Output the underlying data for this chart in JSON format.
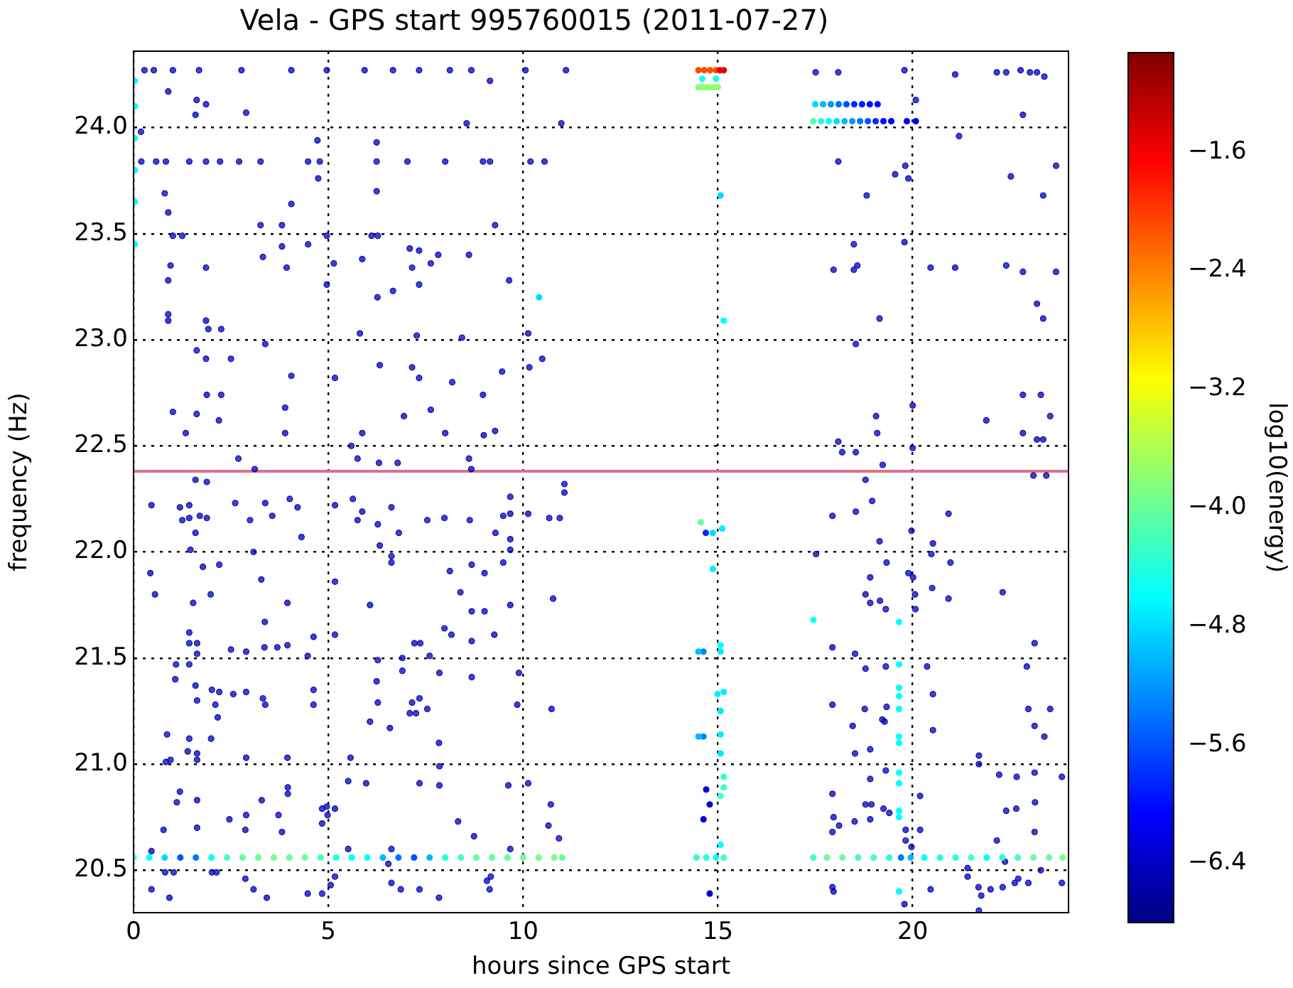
{
  "chart_data": {
    "type": "scatter",
    "title": "Vela - GPS start 995760015 (2011-07-27)",
    "xlabel": "hours since GPS start",
    "ylabel": "frequency (Hz)",
    "clabel": "log10(energy)",
    "xlim": [
      0,
      24
    ],
    "ylim": [
      20.3,
      24.36
    ],
    "xticks": [
      0,
      5,
      10,
      15,
      20
    ],
    "yticks": [
      {
        "value": 20.5,
        "label": "20.5"
      },
      {
        "value": 21,
        "label": "21.0"
      },
      {
        "value": 21.5,
        "label": "21.5"
      },
      {
        "value": 22,
        "label": "22.0"
      },
      {
        "value": 22.5,
        "label": "22.5"
      },
      {
        "value": 23,
        "label": "23.0"
      },
      {
        "value": 23.5,
        "label": "23.5"
      },
      {
        "value": 24,
        "label": "24.0"
      }
    ],
    "clim": [
      -6.8,
      -0.93
    ],
    "cticks": [
      {
        "value": -1.6,
        "label": "−1.6"
      },
      {
        "value": -2.4,
        "label": "−2.4"
      },
      {
        "value": -3.2,
        "label": "−3.2"
      },
      {
        "value": -4,
        "label": "−4.0"
      },
      {
        "value": -4.8,
        "label": "−4.8"
      },
      {
        "value": -5.6,
        "label": "−5.6"
      },
      {
        "value": -6.4,
        "label": "−6.4"
      }
    ],
    "grid": true,
    "marker": "circle",
    "ref_lines": [
      {
        "axis": "y",
        "value": 22.38,
        "color": "#e0708a"
      }
    ],
    "series": [
      {
        "x": [
          0.28,
          0.52,
          1.01,
          1.68,
          2.77,
          4.05,
          4.96,
          5.93,
          6.66,
          7.33,
          8.12,
          8.67,
          10.06,
          11.1,
          0.89,
          1.62,
          1.86,
          1.59,
          2.89,
          8.55,
          10.98,
          9.15,
          0.19
        ],
        "values": [
          24.27,
          24.27,
          24.27,
          24.27,
          24.27,
          24.27,
          24.27,
          24.27,
          24.27,
          24.27,
          24.27,
          24.27,
          24.27,
          24.27,
          24.17,
          24.13,
          24.11,
          24.06,
          24.07,
          24.02,
          24.02,
          24.22,
          23.98
        ],
        "cvalues": [
          -6.5,
          -6.5,
          -6.5,
          -6.5,
          -6.5,
          -6.5,
          -6.5,
          -6.5,
          -6.5,
          -6.5,
          -6.5,
          -6.5,
          -6.5,
          -6.5,
          -6.5,
          -6.5,
          -6.5,
          -6.5,
          -6.5,
          -6.5,
          -6.5,
          -6.5,
          -6.5
        ]
      },
      {
        "x": [
          0.2,
          0.58,
          0.83,
          1.43,
          1.86,
          2.22,
          2.71,
          3.26,
          4.48,
          4.78,
          6.24,
          7.03,
          8.0,
          8.97,
          9.15,
          10.19,
          10.55,
          4.72,
          6.24,
          4.05,
          0.8,
          0.89,
          6.24,
          4.74,
          3.26,
          3.81,
          9.28,
          1.01,
          1.25,
          4.96,
          6.11,
          6.27
        ],
        "values": [
          23.84,
          23.84,
          23.84,
          23.84,
          23.84,
          23.84,
          23.84,
          23.84,
          23.84,
          23.84,
          23.84,
          23.84,
          23.84,
          23.84,
          23.84,
          23.84,
          23.84,
          23.94,
          23.93,
          23.64,
          23.69,
          23.6,
          23.7,
          23.76,
          23.54,
          23.54,
          23.54,
          23.49,
          23.49,
          23.49,
          23.49,
          23.49
        ],
        "cvalues": [
          -6.5,
          -6.5,
          -6.5,
          -6.5,
          -6.5,
          -6.5,
          -6.5,
          -6.5,
          -6.5,
          -6.5,
          -6.5,
          -6.5,
          -6.5,
          -6.5,
          -6.5,
          -6.5,
          -6.5,
          -6.5,
          -6.5,
          -6.5,
          -6.5,
          -6.5,
          -6.5,
          -6.5,
          -6.5,
          -6.5,
          -6.5,
          -6.5,
          -6.5,
          -6.5,
          -6.5,
          -6.5
        ]
      },
      {
        "x": [
          3.32,
          3.81,
          4.48,
          0.95,
          1.86,
          3.93,
          5.14,
          5.87,
          7.09,
          7.33,
          7.82,
          8.61,
          7.63,
          7.15,
          0.89,
          9.64,
          4.96,
          7.33,
          6.66,
          6.26
        ],
        "values": [
          23.39,
          23.44,
          23.45,
          23.35,
          23.34,
          23.34,
          23.36,
          23.38,
          23.43,
          23.42,
          23.4,
          23.4,
          23.36,
          23.34,
          23.28,
          23.28,
          23.26,
          23.26,
          23.23,
          23.2
        ],
        "cvalues": [
          -6.5,
          -6.5,
          -6.5,
          -6.5,
          -6.5,
          -6.5,
          -6.5,
          -6.5,
          -6.5,
          -6.5,
          -6.5,
          -6.5,
          -6.5,
          -6.5,
          -6.5,
          -6.5,
          -6.5,
          -6.5,
          -6.5,
          -6.5
        ]
      },
      {
        "x": [
          10.41,
          0.03,
          0.03,
          0.03,
          0.03,
          0.03,
          0.03
        ],
        "values": [
          23.2,
          24.22,
          24.1,
          23.95,
          23.8,
          23.65,
          23.45
        ],
        "cvalues": [
          -4.8,
          -4.6,
          -4.6,
          -4.6,
          -4.6,
          -4.6,
          -4.6
        ],
        "colors": [
          "#00dcff",
          "#00ffff",
          "#00ffff",
          "#00ffff",
          "#00ffff",
          "#00ffff",
          "#00ffff"
        ]
      },
      {
        "x": [
          0.89,
          0.89,
          1.86,
          1.92,
          2.25,
          5.81,
          7.27,
          8.43,
          10.13,
          3.38,
          1.62,
          1.86,
          2.5,
          4.05,
          5.17,
          6.32,
          7.15,
          7.33,
          8.18,
          9.46,
          10.16,
          10.49,
          8.97,
          1.88,
          2.25,
          1.01,
          1.62,
          2.19,
          3.89,
          6.94,
          7.63,
          1.34,
          3.89,
          5.87,
          8.0,
          8.99,
          9.28,
          5.59,
          2.69,
          5.75,
          8.61,
          6.3,
          6.78,
          3.11,
          8.67,
          1.59,
          1.88,
          11.06
        ],
        "values": [
          23.12,
          23.09,
          23.09,
          23.05,
          23.05,
          23.03,
          23.02,
          23.01,
          23.03,
          22.98,
          22.95,
          22.91,
          22.91,
          22.83,
          22.82,
          22.88,
          22.87,
          22.82,
          22.8,
          22.85,
          22.87,
          22.91,
          22.74,
          22.74,
          22.74,
          22.66,
          22.65,
          22.62,
          22.68,
          22.64,
          22.67,
          22.56,
          22.56,
          22.56,
          22.56,
          22.55,
          22.57,
          22.5,
          22.44,
          22.44,
          22.44,
          22.42,
          22.42,
          22.39,
          22.39,
          22.34,
          22.33,
          22.32
        ],
        "cvalues": [
          -6.5,
          -6.5,
          -6.5,
          -6.5,
          -6.5,
          -6.5,
          -6.5,
          -6.5,
          -6.5,
          -6.5,
          -6.5,
          -6.5,
          -6.5,
          -6.5,
          -6.5,
          -6.5,
          -6.5,
          -6.5,
          -6.5,
          -6.5,
          -6.5,
          -6.5,
          -6.5,
          -6.5,
          -6.5,
          -6.5,
          -6.5,
          -6.5,
          -6.5,
          -6.5,
          -6.5,
          -6.5,
          -6.5,
          -6.5,
          -6.5,
          -6.5,
          -6.5,
          -6.5,
          -6.5,
          -6.5,
          -6.5,
          -6.5,
          -6.5,
          -6.5,
          -6.5,
          -6.5,
          -6.5,
          -6.5
        ]
      },
      {
        "x": [
          14.5,
          14.65,
          14.8,
          14.95,
          15.05,
          15.15,
          14.5,
          14.6,
          14.7,
          14.8,
          14.9,
          15.0,
          14.6,
          14.95
        ],
        "values": [
          24.27,
          24.27,
          24.27,
          24.27,
          24.27,
          24.27,
          24.19,
          24.19,
          24.19,
          24.19,
          24.19,
          24.19,
          24.23,
          24.23
        ],
        "cvalues": [
          -2.1,
          -2.1,
          -2.1,
          -2.1,
          -1.5,
          -1.5,
          -3.8,
          -3.8,
          -3.8,
          -3.8,
          -3.8,
          -3.8,
          -4.5,
          -4.5
        ],
        "colors": [
          "#ff4c00",
          "#ff4c00",
          "#ff4c00",
          "#ff4c00",
          "#e20000",
          "#e20000",
          "#8bff74",
          "#8bff74",
          "#8bff74",
          "#8bff74",
          "#8bff74",
          "#8bff74",
          "#11ffee",
          "#11ffee"
        ]
      },
      {
        "x": [
          17.5,
          17.7,
          17.9,
          18.1,
          18.3,
          18.5,
          18.7,
          18.9,
          19.1,
          17.45,
          17.65,
          17.85,
          18.05,
          18.25,
          18.45,
          18.65,
          18.85,
          19.05,
          19.25,
          19.45,
          19.85,
          20.08
        ],
        "values": [
          24.11,
          24.11,
          24.11,
          24.11,
          24.11,
          24.11,
          24.11,
          24.11,
          24.11,
          24.03,
          24.03,
          24.03,
          24.03,
          24.03,
          24.03,
          24.03,
          24.03,
          24.03,
          24.03,
          24.03,
          24.03,
          24.03
        ],
        "cvalues": [
          -4.8,
          -5.0,
          -5.2,
          -5.4,
          -5.6,
          -5.8,
          -5.9,
          -6.0,
          -6.0,
          -4.1,
          -4.4,
          -4.6,
          -4.8,
          -5.0,
          -5.2,
          -5.4,
          -5.6,
          -5.8,
          -6.0,
          -6.1,
          -6.2,
          -6.2
        ],
        "colors": [
          "#00dcff",
          "#00b9ff",
          "#0097ff",
          "#0074ff",
          "#0051ff",
          "#002eff",
          "#001dff",
          "#000cff",
          "#000cff",
          "#57ffa8",
          "#22ffdd",
          "#00ffff",
          "#00dcff",
          "#00b9ff",
          "#0097ff",
          "#0074ff",
          "#0051ff",
          "#002eff",
          "#000cff",
          "#0000f9",
          "#0000e8",
          "#0000e8"
        ]
      },
      {
        "x": [
          17.51,
          18.09,
          19.79,
          21.09,
          22.16,
          22.4,
          22.77,
          23.01,
          23.19,
          23.38,
          20.08,
          22.83,
          21.19,
          18.09,
          19.81,
          19.55,
          19.89,
          22.52,
          23.68,
          18.82,
          23.35,
          19.79,
          18.49,
          17.97,
          18.49,
          18.58,
          20.46,
          21.09,
          22.4,
          22.83,
          23.68,
          23.19,
          23.35,
          19.15,
          18.54,
          19.06,
          19.09,
          20.0,
          21.89,
          22.83,
          23.29,
          23.53,
          22.83,
          23.19,
          23.35,
          18.09,
          18.19,
          18.54,
          20.0,
          19.23,
          18.79,
          23.1,
          23.43
        ],
        "values": [
          24.26,
          24.26,
          24.27,
          24.25,
          24.26,
          24.26,
          24.27,
          24.26,
          24.26,
          24.24,
          24.13,
          24.06,
          23.96,
          23.84,
          23.82,
          23.78,
          23.76,
          23.77,
          23.82,
          23.68,
          23.68,
          23.46,
          23.45,
          23.33,
          23.33,
          23.35,
          23.34,
          23.34,
          23.35,
          23.32,
          23.32,
          23.17,
          23.1,
          23.1,
          22.98,
          22.64,
          22.56,
          22.69,
          22.62,
          22.74,
          22.74,
          22.64,
          22.56,
          22.53,
          22.53,
          22.52,
          22.47,
          22.47,
          22.49,
          22.41,
          22.34,
          22.36,
          22.36
        ],
        "cvalues": [
          -6.5,
          -6.5,
          -6.5,
          -6.5,
          -6.5,
          -6.5,
          -6.5,
          -6.5,
          -6.5,
          -6.5,
          -6.5,
          -6.5,
          -6.5,
          -6.5,
          -6.5,
          -6.5,
          -6.5,
          -6.5,
          -6.5,
          -6.5,
          -6.5,
          -6.5,
          -6.5,
          -6.5,
          -6.5,
          -6.5,
          -6.5,
          -6.5,
          -6.5,
          -6.5,
          -6.5,
          -6.5,
          -6.5,
          -6.5,
          -6.5,
          -6.5,
          -6.5,
          -6.5,
          -6.5,
          -6.5,
          -6.5,
          -6.5,
          -6.5,
          -6.5,
          -6.5,
          -6.5,
          -6.5,
          -6.5,
          -6.5,
          -6.5,
          -6.5,
          -6.5,
          -6.5
        ]
      },
      {
        "x": [
          15.07,
          15.15
        ],
        "values": [
          23.68,
          23.09
        ],
        "cvalues": [
          -4.8,
          -4.6
        ],
        "colors": [
          "#00dcff",
          "#00ffff"
        ]
      },
      {
        "x": [
          0.46,
          1.19,
          1.43,
          1.25,
          1.43,
          1.7,
          1.88,
          1.59,
          1.46,
          2.61,
          2.99,
          3.38,
          3.56,
          4.01,
          4.21,
          4.31,
          3.08,
          0.43,
          0.55,
          1.78,
          2.2,
          1.53,
          1.98,
          3.28,
          3.37,
          3.95,
          1.43,
          1.43,
          1.63,
          1.63,
          2.5,
          2.89,
          3.36,
          3.69,
          3.95,
          4.62,
          4.47,
          1.09,
          1.43,
          1.07,
          1.59,
          2.01,
          2.2,
          2.56,
          2.89,
          3.32,
          3.38,
          4.62,
          4.62,
          1.63
        ],
        "values": [
          22.22,
          22.21,
          22.22,
          22.15,
          22.16,
          22.17,
          22.16,
          22.09,
          22.01,
          22.23,
          22.15,
          22.23,
          22.17,
          22.25,
          22.21,
          22.07,
          22.0,
          21.9,
          21.8,
          21.93,
          21.94,
          21.76,
          21.8,
          21.87,
          21.67,
          21.76,
          21.62,
          21.57,
          21.57,
          21.52,
          21.54,
          21.53,
          21.55,
          21.55,
          21.56,
          21.6,
          21.51,
          21.47,
          21.47,
          21.4,
          21.37,
          21.35,
          21.34,
          21.33,
          21.34,
          21.31,
          21.28,
          21.35,
          21.28,
          21.3
        ],
        "cvalues": [
          -6.5,
          -6.5,
          -6.5,
          -6.5,
          -6.5,
          -6.5,
          -6.5,
          -6.5,
          -6.5,
          -6.5,
          -6.5,
          -6.5,
          -6.5,
          -6.5,
          -6.5,
          -6.5,
          -6.5,
          -6.5,
          -6.5,
          -6.5,
          -6.5,
          -6.5,
          -6.5,
          -6.5,
          -6.5,
          -6.5,
          -6.5,
          -6.5,
          -6.5,
          -6.5,
          -6.5,
          -6.5,
          -6.5,
          -6.5,
          -6.5,
          -6.5,
          -6.5,
          -6.5,
          -6.5,
          -6.5,
          -6.5,
          -6.5,
          -6.5,
          -6.5,
          -6.5,
          -6.5,
          -6.5,
          -6.5,
          -6.5,
          -6.5
        ]
      },
      {
        "x": [
          2.1,
          2.16,
          0.86,
          1.43,
          1.99,
          1.39,
          1.63,
          1.63,
          0.95,
          0.83,
          2.89,
          3.95,
          1.19,
          1.11,
          1.63,
          3.29,
          3.96,
          3.96,
          2.46,
          2.89,
          3.72,
          1.63,
          2.87,
          3.81,
          0.77,
          4.84,
          4.96,
          5.17,
          4.84,
          4.98,
          0.46,
          0.81,
          1.03,
          2.01,
          2.13,
          2.87,
          0.46,
          0.92,
          3.08,
          3.42,
          4.47,
          4.84,
          5.06,
          5.17
        ],
        "values": [
          21.28,
          21.22,
          21.14,
          21.12,
          21.12,
          21.06,
          21.05,
          21.02,
          21.02,
          21.01,
          21.03,
          21.03,
          20.87,
          20.82,
          20.83,
          20.83,
          20.89,
          20.86,
          20.74,
          20.76,
          20.76,
          20.7,
          20.69,
          20.68,
          20.69,
          20.79,
          20.8,
          20.79,
          20.72,
          20.76,
          20.59,
          20.49,
          20.49,
          20.49,
          20.49,
          20.46,
          20.41,
          20.37,
          20.41,
          20.37,
          20.39,
          20.39,
          20.43,
          20.47
        ],
        "cvalues": [
          -6.5,
          -6.5,
          -6.5,
          -6.5,
          -6.5,
          -6.5,
          -6.5,
          -6.5,
          -6.5,
          -6.5,
          -6.5,
          -6.5,
          -6.5,
          -6.5,
          -6.5,
          -6.5,
          -6.5,
          -6.5,
          -6.5,
          -6.5,
          -6.5,
          -6.5,
          -6.5,
          -6.5,
          -6.5,
          -6.5,
          -6.5,
          -6.5,
          -6.5,
          -6.5,
          -6.5,
          -6.5,
          -6.5,
          -6.5,
          -6.5,
          -6.5,
          -6.5,
          -6.5,
          -6.5,
          -6.5,
          -6.5,
          -6.5,
          -6.5,
          -6.5
        ]
      },
      {
        "x": [
          5.17,
          5.63,
          5.75,
          5.87,
          6.27,
          6.62,
          6.81,
          6.32,
          6.62,
          6.62,
          7.54,
          7.98,
          8.63,
          9.29,
          9.49,
          9.67,
          9.67,
          9.67,
          9.49,
          9.67,
          5.17,
          6.07,
          8.12,
          8.39,
          8.68,
          9.01,
          9.01,
          8.68,
          9.67,
          7.98,
          8.16,
          8.68,
          9.26,
          7.21,
          7.36,
          5.17,
          6.27,
          6.9,
          7.6,
          6.9,
          6.24,
          6.27,
          7.85,
          8.68,
          7.15,
          7.34,
          7.54,
          7.09,
          7.25,
          6.07
        ],
        "values": [
          22.22,
          22.25,
          22.15,
          22.19,
          22.13,
          22.21,
          22.09,
          22.03,
          21.98,
          21.95,
          22.15,
          22.16,
          22.15,
          22.09,
          22.17,
          22.18,
          22.06,
          22.01,
          21.95,
          22.26,
          21.86,
          21.75,
          21.91,
          21.81,
          21.94,
          21.9,
          21.72,
          21.72,
          21.75,
          21.64,
          21.61,
          21.58,
          21.61,
          21.57,
          21.57,
          21.61,
          21.49,
          21.5,
          21.51,
          21.44,
          21.39,
          21.29,
          21.43,
          21.41,
          21.29,
          21.31,
          21.26,
          21.24,
          21.24,
          21.2
        ],
        "cvalues": [
          -6.5,
          -6.5,
          -6.5,
          -6.5,
          -6.5,
          -6.5,
          -6.5,
          -6.5,
          -6.5,
          -6.5,
          -6.5,
          -6.5,
          -6.5,
          -6.5,
          -6.5,
          -6.5,
          -6.5,
          -6.5,
          -6.5,
          -6.5,
          -6.5,
          -6.5,
          -6.5,
          -6.5,
          -6.5,
          -6.5,
          -6.5,
          -6.5,
          -6.5,
          -6.5,
          -6.5,
          -6.5,
          -6.5,
          -6.5,
          -6.5,
          -6.5,
          -6.5,
          -6.5,
          -6.5,
          -6.5,
          -6.5,
          -6.5,
          -6.5,
          -6.5,
          -6.5,
          -6.5,
          -6.5,
          -6.5,
          -6.5,
          -6.5
        ]
      },
      {
        "x": [
          6.58,
          7.84,
          5.57,
          7.85,
          7.85,
          7.34,
          5.51,
          5.97,
          8.33,
          8.74,
          9.62,
          9.85,
          9.89,
          10.13,
          10.71,
          10.65,
          10.92,
          10.73,
          10.77,
          10.67,
          10.94,
          11.06,
          10.13,
          9.67,
          5.51,
          6.62,
          6.54,
          6.62,
          6.86,
          7.34,
          7.84,
          9.07,
          9.17,
          9.14
        ],
        "values": [
          21.17,
          21.1,
          21.03,
          20.99,
          20.9,
          20.91,
          20.92,
          20.91,
          20.73,
          20.66,
          20.9,
          21.28,
          21.43,
          20.91,
          20.81,
          20.71,
          20.65,
          21.26,
          21.78,
          22.16,
          22.16,
          22.28,
          22.18,
          20.6,
          20.6,
          20.6,
          20.53,
          20.44,
          20.41,
          20.41,
          20.37,
          20.45,
          20.47,
          20.41
        ],
        "cvalues": [
          -6.5,
          -6.5,
          -6.5,
          -6.5,
          -6.5,
          -6.5,
          -6.5,
          -6.5,
          -6.5,
          -6.5,
          -6.5,
          -6.5,
          -6.5,
          -6.5,
          -6.5,
          -6.5,
          -6.5,
          -6.5,
          -6.5,
          -6.5,
          -6.5,
          -6.5,
          -6.5,
          -6.5,
          -6.5,
          -6.5,
          -6.5,
          -6.5,
          -6.5,
          -6.5,
          -6.5,
          -6.5,
          -6.5,
          -6.5
        ]
      },
      {
        "x": [
          0.0,
          0.4,
          0.8,
          1.2,
          1.6,
          2.0,
          2.4,
          2.8,
          3.2,
          3.6,
          4.0,
          4.4,
          4.8,
          5.2,
          5.6,
          6.0,
          6.4,
          6.8,
          7.2,
          7.6,
          8.0,
          8.4,
          8.8,
          9.2,
          9.6,
          10.0,
          10.4,
          10.8,
          11.0
        ],
        "values": [
          20.56,
          20.56,
          20.56,
          20.56,
          20.56,
          20.56,
          20.56,
          20.56,
          20.56,
          20.56,
          20.56,
          20.56,
          20.56,
          20.56,
          20.56,
          20.56,
          20.56,
          20.56,
          20.56,
          20.56,
          20.56,
          20.56,
          20.56,
          20.56,
          20.56,
          20.56,
          20.56,
          20.56,
          20.56
        ],
        "cvalues": [
          -4.2,
          -4.6,
          -4.8,
          -5.6,
          -5.4,
          -4.6,
          -4.2,
          -4.0,
          -4.0,
          -3.9,
          -4.0,
          -4.0,
          -4.2,
          -4.4,
          -4.6,
          -4.6,
          -5.0,
          -5.4,
          -5.6,
          -5.0,
          -4.4,
          -4.2,
          -4.0,
          -4.0,
          -4.0,
          -4.0,
          -3.9,
          -3.9,
          -4.0
        ],
        "colors": [
          "#45ffba",
          "#00ffff",
          "#00dcff",
          "#0051ff",
          "#0074ff",
          "#00ffff",
          "#45ffba",
          "#68ff97",
          "#68ff97",
          "#79ff86",
          "#68ff97",
          "#68ff97",
          "#45ffba",
          "#22ffdd",
          "#00ffff",
          "#00ffff",
          "#00b9ff",
          "#0074ff",
          "#0051ff",
          "#00b9ff",
          "#22ffdd",
          "#45ffba",
          "#68ff97",
          "#68ff97",
          "#68ff97",
          "#68ff97",
          "#79ff86",
          "#79ff86",
          "#68ff97"
        ]
      },
      {
        "x": [
          14.45,
          14.7,
          14.95,
          15.15,
          17.45,
          17.8,
          18.2,
          18.6,
          19.0,
          19.4,
          19.7,
          19.95,
          20.3,
          20.7,
          21.1,
          21.5,
          21.9,
          22.3,
          22.7,
          23.1,
          23.5,
          23.85
        ],
        "values": [
          20.56,
          20.56,
          20.56,
          20.56,
          20.56,
          20.56,
          20.56,
          20.56,
          20.56,
          20.56,
          20.56,
          20.56,
          20.56,
          20.56,
          20.56,
          20.56,
          20.56,
          20.56,
          20.56,
          20.56,
          20.56,
          20.56
        ],
        "cvalues": [
          -4.3,
          -4.4,
          -4.6,
          -4.2,
          -4.2,
          -4.0,
          -4.0,
          -4.2,
          -4.2,
          -4.4,
          -5.4,
          -5.0,
          -4.6,
          -4.4,
          -4.4,
          -4.2,
          -4.6,
          -4.4,
          -4.2,
          -4.0,
          -4.0,
          -3.9
        ],
        "colors": [
          "#34ffcb",
          "#22ffdd",
          "#00ffff",
          "#45ffba",
          "#45ffba",
          "#68ff97",
          "#68ff97",
          "#45ffba",
          "#45ffba",
          "#22ffdd",
          "#0074ff",
          "#00b9ff",
          "#00ffff",
          "#22ffdd",
          "#22ffdd",
          "#45ffba",
          "#00ffff",
          "#22ffdd",
          "#45ffba",
          "#68ff97",
          "#68ff97",
          "#79ff86"
        ]
      },
      {
        "x": [
          14.56,
          14.69,
          14.87,
          15.11,
          14.87,
          14.63,
          14.5,
          15.07,
          15.07,
          14.99,
          15.15,
          15.07,
          14.63,
          14.5,
          15.07,
          15.07,
          15.15,
          15.15,
          15.07,
          14.7,
          14.79,
          14.63,
          15.07,
          14.79
        ],
        "values": [
          22.14,
          22.09,
          22.09,
          22.11,
          21.92,
          21.53,
          21.53,
          21.53,
          21.56,
          21.33,
          21.34,
          21.25,
          21.13,
          21.13,
          21.14,
          21.05,
          20.94,
          20.89,
          20.85,
          20.88,
          20.81,
          20.74,
          20.62,
          20.39
        ],
        "cvalues": [
          -4.0,
          -5.8,
          -4.8,
          -4.7,
          -4.7,
          -5.3,
          -5.0,
          -4.7,
          -4.6,
          -4.7,
          -4.7,
          -4.7,
          -5.3,
          -5.0,
          -4.7,
          -4.7,
          -4.3,
          -4.2,
          -4.2,
          -6.3,
          -6.3,
          -6.3,
          -4.6,
          -6.3
        ],
        "colors": [
          "#68ff97",
          "#002eff",
          "#00dcff",
          "#00edff",
          "#00edff",
          "#0085ff",
          "#00b9ff",
          "#00edff",
          "#00ffff",
          "#00edff",
          "#00edff",
          "#00edff",
          "#0085ff",
          "#00b9ff",
          "#00edff",
          "#00edff",
          "#34ffcb",
          "#45ffba",
          "#45ffba",
          "#0000d6",
          "#0000d6",
          "#0000d6",
          "#00ffff",
          "#0000d6"
        ]
      },
      {
        "x": [
          19.65,
          19.65,
          19.65,
          19.65,
          19.65,
          19.65,
          19.65,
          19.65,
          19.65,
          19.65,
          19.65,
          19.65,
          17.45
        ],
        "values": [
          21.67,
          21.47,
          21.36,
          21.32,
          21.26,
          21.13,
          21.1,
          20.96,
          20.91,
          20.78,
          20.75,
          20.4,
          21.68
        ],
        "cvalues": [
          -4.6,
          -4.6,
          -4.6,
          -4.6,
          -4.6,
          -4.6,
          -4.6,
          -4.6,
          -4.6,
          -4.6,
          -4.6,
          -4.6,
          -4.5
        ],
        "colors": [
          "#00ffff",
          "#00ffff",
          "#00ffff",
          "#00ffff",
          "#00ffff",
          "#00ffff",
          "#00ffff",
          "#00ffff",
          "#00ffff",
          "#00ffff",
          "#00ffff",
          "#00ffff",
          "#11ffee"
        ]
      },
      {
        "x": [
          17.94,
          18.54,
          18.96,
          19.15,
          20.92,
          19.97,
          20.52,
          17.52,
          19.33,
          20.48,
          20.97,
          18.91,
          19.89,
          20.01,
          18.79,
          19.16,
          18.91,
          19.31,
          20.5,
          20.06,
          20.92,
          22.31,
          20.07,
          17.94,
          18.52,
          18.79,
          19.31,
          20.37,
          22.93,
          23.13,
          20.52,
          17.94,
          18.77,
          19.33,
          19.22,
          19.28,
          18.46,
          20.52,
          22.97,
          23.53,
          23.13,
          23.38,
          18.52,
          18.91,
          21.7,
          21.7,
          22.22,
          22.67,
          23.13,
          23.83
        ],
        "values": [
          22.17,
          22.19,
          22.24,
          22.05,
          22.18,
          22.1,
          22.04,
          21.99,
          21.95,
          21.99,
          21.95,
          21.88,
          21.9,
          21.88,
          21.8,
          21.77,
          21.76,
          21.73,
          21.83,
          21.8,
          21.78,
          21.81,
          21.73,
          21.55,
          21.52,
          21.45,
          21.46,
          21.46,
          21.46,
          21.57,
          21.33,
          21.28,
          21.26,
          21.27,
          21.21,
          21.2,
          21.18,
          21.16,
          21.26,
          21.26,
          21.18,
          21.13,
          21.05,
          21.07,
          21.04,
          21.0,
          20.95,
          20.94,
          20.96,
          20.94
        ],
        "cvalues": [
          -6.5,
          -6.5,
          -6.5,
          -6.5,
          -6.5,
          -6.5,
          -6.5,
          -6.5,
          -6.5,
          -6.5,
          -6.5,
          -6.5,
          -6.5,
          -6.5,
          -6.5,
          -6.5,
          -6.5,
          -6.5,
          -6.5,
          -6.5,
          -6.5,
          -6.5,
          -6.5,
          -6.5,
          -6.5,
          -6.5,
          -6.5,
          -6.5,
          -6.5,
          -6.5,
          -6.5,
          -6.5,
          -6.5,
          -6.5,
          -6.5,
          -6.5,
          -6.5,
          -6.5,
          -6.5,
          -6.5,
          -6.5,
          -6.5,
          -6.5,
          -6.5,
          -6.5,
          -6.5,
          -6.5,
          -6.5,
          -6.5,
          -6.5
        ]
      },
      {
        "x": [
          19.31,
          18.91,
          17.94,
          18.79,
          18.94,
          19.25,
          19.4,
          20.19,
          17.97,
          18.11,
          18.51,
          18.91,
          17.94,
          19.82,
          20.19,
          19.82,
          19.97,
          22.4,
          22.66,
          23.14,
          23.13,
          22.16,
          22.37,
          21.41,
          21.41,
          21.69,
          21.76,
          22.0,
          22.31,
          22.62,
          22.71,
          22.97,
          23.29,
          23.83,
          20.46,
          17.94,
          17.97,
          19.79,
          21.7
        ],
        "values": [
          20.97,
          20.93,
          20.86,
          20.81,
          20.81,
          20.79,
          20.77,
          20.85,
          20.75,
          20.71,
          20.73,
          20.74,
          20.68,
          20.69,
          20.69,
          20.64,
          20.61,
          20.78,
          20.79,
          20.82,
          20.68,
          20.64,
          20.54,
          20.51,
          20.47,
          20.42,
          20.38,
          20.41,
          20.42,
          20.44,
          20.46,
          20.44,
          20.5,
          20.44,
          20.41,
          20.42,
          20.4,
          20.34,
          20.31
        ],
        "cvalues": [
          -6.5,
          -6.5,
          -6.5,
          -6.5,
          -6.5,
          -6.5,
          -6.5,
          -6.5,
          -6.5,
          -6.5,
          -6.5,
          -6.5,
          -6.5,
          -6.5,
          -6.5,
          -6.5,
          -6.5,
          -6.5,
          -6.5,
          -6.5,
          -6.5,
          -6.5,
          -6.5,
          -6.5,
          -6.5,
          -6.5,
          -6.5,
          -6.5,
          -6.5,
          -6.5,
          -6.5,
          -6.5,
          -6.5,
          -6.5,
          -6.5,
          -6.5,
          -6.5,
          -6.5,
          -6.5
        ]
      }
    ]
  }
}
